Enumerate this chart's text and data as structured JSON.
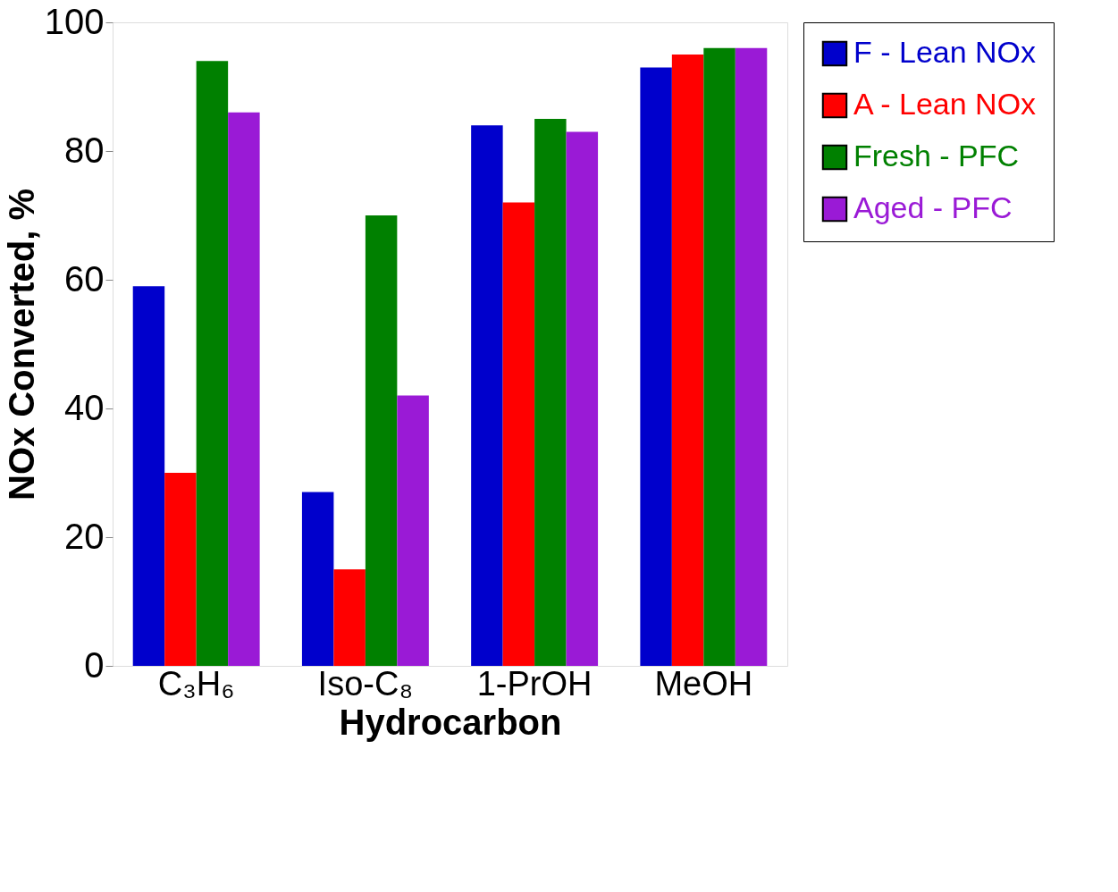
{
  "chart_data": {
    "type": "bar",
    "xlabel": "Hydrocarbon",
    "ylabel": "NOx Converted, %",
    "categories": [
      "C₃H₆",
      "Iso-C₈",
      "1-PrOH",
      "MeOH"
    ],
    "series": [
      {
        "name": "F - Lean NOx",
        "color": "#0000cc",
        "values": [
          59,
          27,
          84,
          93
        ]
      },
      {
        "name": "A - Lean NOx",
        "color": "#ff0000",
        "values": [
          30,
          15,
          72,
          95
        ]
      },
      {
        "name": "Fresh - PFC",
        "color": "#008000",
        "values": [
          94,
          70,
          85,
          96
        ]
      },
      {
        "name": "Aged - PFC",
        "color": "#9a1ad6",
        "values": [
          86,
          42,
          83,
          96
        ]
      }
    ],
    "ylim": [
      0,
      100
    ],
    "yticks": [
      0,
      20,
      40,
      60,
      80,
      100
    ],
    "grid": false,
    "legend": "right"
  }
}
